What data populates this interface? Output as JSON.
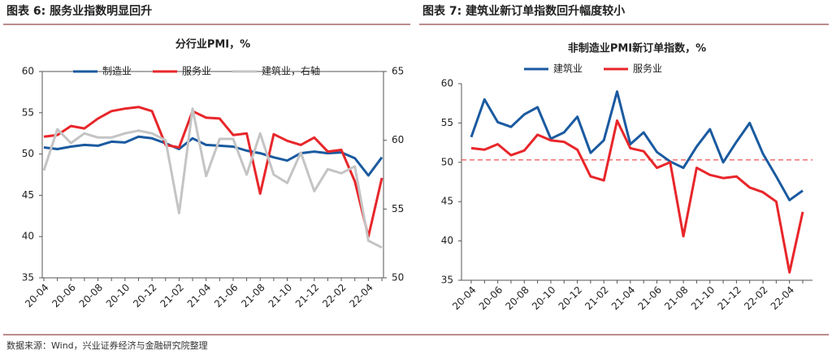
{
  "figure_titles": [
    "图表 6:  服务业指数明显回升",
    "图表 7:  建筑业新订单指数回升幅度较小"
  ],
  "source": "数据来源：Wind，兴业证券经济与金融研究院整理",
  "chart_data": [
    {
      "type": "line",
      "title": "分行业PMI，%",
      "categories": [
        "20-04",
        null,
        "20-06",
        null,
        "20-08",
        null,
        "20-10",
        null,
        "20-12",
        null,
        "21-02",
        null,
        "21-04",
        null,
        "21-06",
        null,
        "21-08",
        null,
        "21-10",
        null,
        "21-12",
        null,
        "22-02",
        null,
        "22-04",
        null
      ],
      "series": [
        {
          "name": "制造业",
          "color": "#1a5aa0",
          "values": [
            50.8,
            50.6,
            50.9,
            51.1,
            51.0,
            51.5,
            51.4,
            52.1,
            51.9,
            51.3,
            50.6,
            51.9,
            51.1,
            51.0,
            50.9,
            50.4,
            50.1,
            49.6,
            49.2,
            50.1,
            50.3,
            50.1,
            50.2,
            49.5,
            47.4,
            49.6
          ]
        },
        {
          "name": "服务业",
          "color": "#e8262a",
          "values": [
            52.1,
            52.3,
            53.4,
            53.1,
            54.3,
            55.2,
            55.5,
            55.7,
            55.2,
            51.1,
            50.8,
            55.2,
            54.4,
            54.3,
            52.3,
            52.5,
            45.2,
            52.4,
            51.6,
            51.1,
            52.0,
            50.3,
            50.5,
            46.7,
            40.0,
            47.1
          ]
        },
        {
          "name": "建筑业，右轴",
          "color": "#c4c4c4",
          "axis": "y2",
          "values": [
            57.8,
            60.8,
            59.8,
            60.5,
            60.2,
            60.2,
            60.5,
            60.7,
            60.5,
            60.0,
            54.7,
            62.3,
            57.4,
            60.1,
            60.1,
            57.5,
            60.5,
            57.5,
            56.9,
            59.1,
            56.3,
            57.9,
            57.6,
            58.1,
            52.7,
            52.2
          ]
        }
      ],
      "ylim": [
        35,
        60
      ],
      "yticks": [
        35,
        40,
        45,
        50,
        55,
        60
      ],
      "y2lim": [
        50,
        65
      ],
      "y2ticks": [
        50,
        55,
        60,
        65
      ],
      "legend": "top"
    },
    {
      "type": "line",
      "title": "非制造业PMI新订单指数，%",
      "categories": [
        "20-04",
        null,
        "20-06",
        null,
        "20-08",
        null,
        "20-10",
        null,
        "20-12",
        null,
        "21-02",
        null,
        "21-04",
        null,
        "21-06",
        null,
        "21-08",
        null,
        "21-10",
        null,
        "21-12",
        null,
        "22-02",
        null,
        "22-04",
        null
      ],
      "series": [
        {
          "name": "建筑业",
          "color": "#1a5aa0",
          "values": [
            53.2,
            58.0,
            55.1,
            54.5,
            56.1,
            57.0,
            53.0,
            53.8,
            55.8,
            51.2,
            52.8,
            59.0,
            52.3,
            53.8,
            51.3,
            50.1,
            49.3,
            52.0,
            54.2,
            50.0,
            52.6,
            55.0,
            51.1,
            48.2,
            45.2,
            46.4
          ]
        },
        {
          "name": "服务业",
          "color": "#e8262a",
          "values": [
            51.8,
            51.6,
            52.3,
            50.9,
            51.5,
            53.5,
            52.8,
            52.6,
            51.6,
            48.2,
            47.7,
            55.3,
            51.8,
            51.4,
            49.3,
            50.0,
            40.6,
            49.3,
            48.4,
            48.0,
            48.2,
            46.8,
            46.2,
            45.0,
            36.0,
            43.7
          ]
        }
      ],
      "ylim": [
        35,
        60
      ],
      "yticks": [
        35,
        40,
        45,
        50,
        55,
        60
      ],
      "legend": "top",
      "ref_line": {
        "value": 50.3,
        "color": "#e8262a",
        "style": "dashed"
      }
    }
  ]
}
